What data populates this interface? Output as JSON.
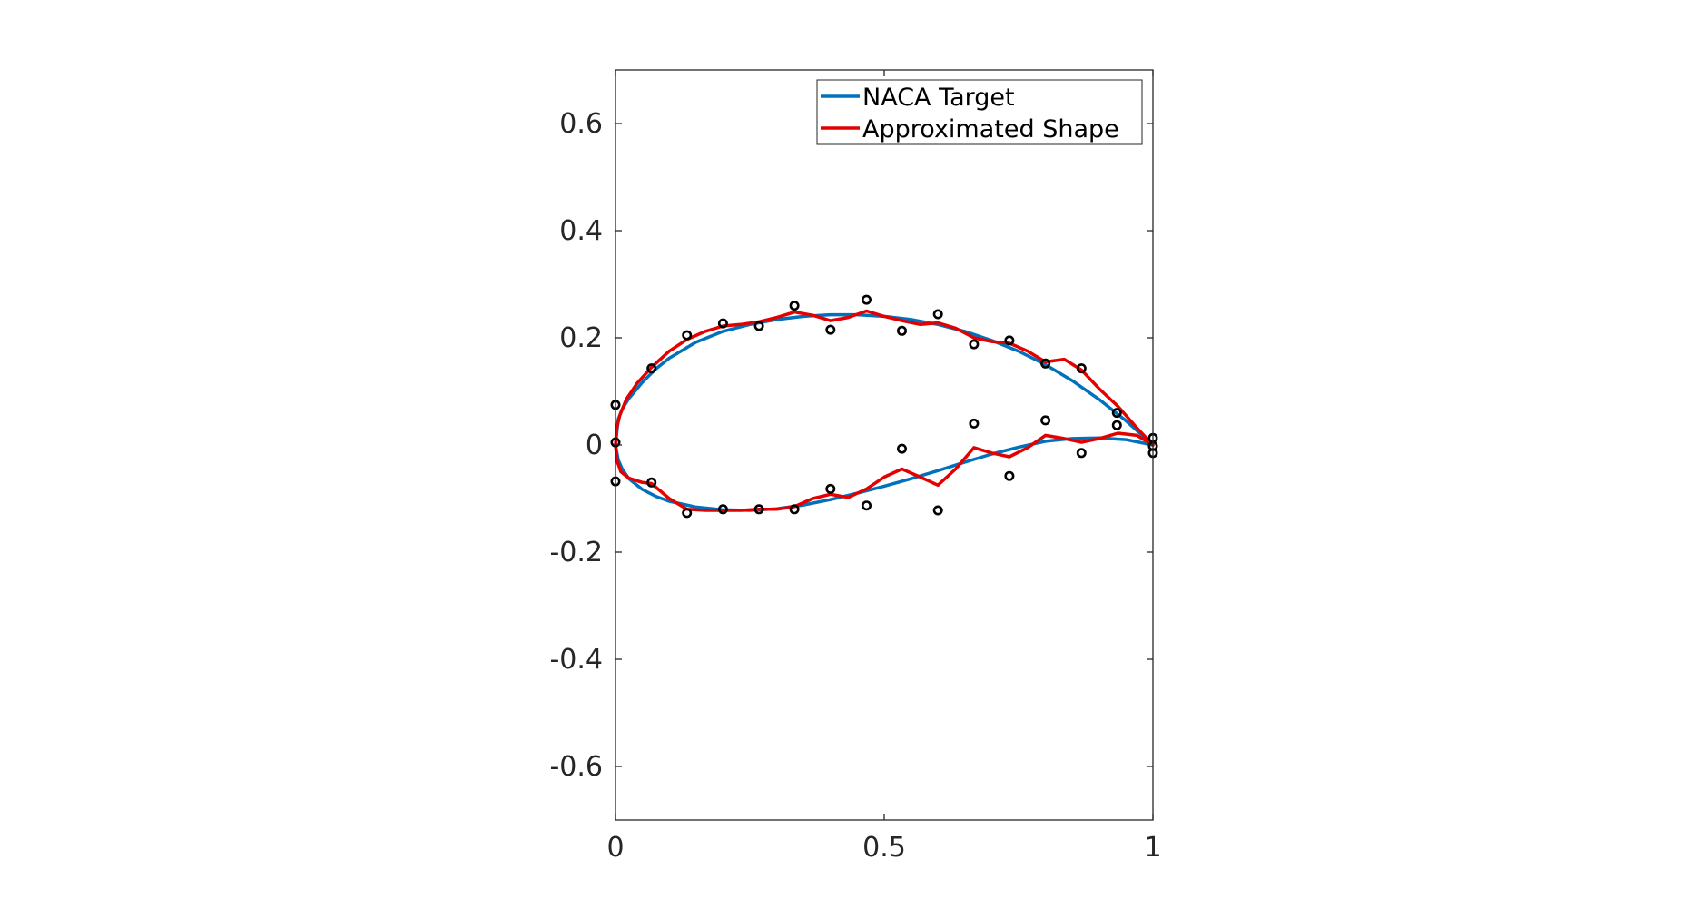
{
  "chart_data": {
    "type": "line",
    "title": "",
    "xlabel": "",
    "ylabel": "",
    "xlim": [
      0,
      1
    ],
    "ylim": [
      -0.7,
      0.7
    ],
    "grid": false,
    "legend_position": "top-right",
    "x_ticks": [
      "0",
      "0.5",
      "1"
    ],
    "y_ticks": [
      "0.6",
      "0.4",
      "0.2",
      "0",
      "-0.2",
      "-0.4",
      "-0.6"
    ],
    "series": [
      {
        "name": "NACA Target",
        "color": "#0072BD",
        "style": "line",
        "x": [
          1,
          0.95,
          0.9,
          0.85,
          0.8,
          0.75,
          0.7,
          0.65,
          0.6,
          0.55,
          0.5,
          0.45,
          0.4,
          0.35,
          0.3,
          0.25,
          0.2,
          0.15,
          0.1,
          0.075,
          0.05,
          0.025,
          0.0125,
          0.005,
          0,
          0.005,
          0.0125,
          0.025,
          0.05,
          0.075,
          0.1,
          0.15,
          0.2,
          0.25,
          0.3,
          0.35,
          0.4,
          0.45,
          0.5,
          0.55,
          0.6,
          0.65,
          0.7,
          0.75,
          0.8,
          0.85,
          0.9,
          0.95,
          1
        ],
        "y": [
          0,
          0.045,
          0.085,
          0.12,
          0.15,
          0.175,
          0.195,
          0.212,
          0.225,
          0.234,
          0.24,
          0.243,
          0.243,
          0.24,
          0.234,
          0.225,
          0.212,
          0.192,
          0.162,
          0.142,
          0.117,
          0.087,
          0.067,
          0.048,
          0,
          -0.028,
          -0.045,
          -0.063,
          -0.083,
          -0.096,
          -0.105,
          -0.116,
          -0.121,
          -0.122,
          -0.119,
          -0.112,
          -0.102,
          -0.09,
          -0.077,
          -0.063,
          -0.048,
          -0.032,
          -0.017,
          -0.004,
          0.007,
          0.012,
          0.013,
          0.01,
          0
        ]
      },
      {
        "name": "Approximated Shape",
        "color": "#E50000",
        "style": "line",
        "x": [
          1,
          0.97,
          0.935,
          0.9,
          0.867,
          0.835,
          0.8,
          0.767,
          0.733,
          0.7,
          0.667,
          0.633,
          0.6,
          0.567,
          0.533,
          0.5,
          0.467,
          0.433,
          0.4,
          0.367,
          0.333,
          0.3,
          0.267,
          0.233,
          0.2,
          0.167,
          0.133,
          0.1,
          0.067,
          0.04,
          0.02,
          0.008,
          0.002,
          0,
          0.003,
          0.01,
          0.025,
          0.05,
          0.067,
          0.1,
          0.133,
          0.167,
          0.2,
          0.233,
          0.267,
          0.3,
          0.333,
          0.367,
          0.4,
          0.433,
          0.467,
          0.5,
          0.533,
          0.567,
          0.6,
          0.633,
          0.667,
          0.7,
          0.733,
          0.767,
          0.8,
          0.835,
          0.867,
          0.9,
          0.935,
          0.97,
          1
        ],
        "y": [
          0,
          0.032,
          0.072,
          0.105,
          0.14,
          0.16,
          0.155,
          0.175,
          0.19,
          0.193,
          0.2,
          0.218,
          0.228,
          0.225,
          0.232,
          0.24,
          0.25,
          0.238,
          0.232,
          0.242,
          0.248,
          0.238,
          0.23,
          0.225,
          0.222,
          0.212,
          0.197,
          0.175,
          0.145,
          0.115,
          0.085,
          0.055,
          0.03,
          0,
          -0.03,
          -0.05,
          -0.062,
          -0.07,
          -0.072,
          -0.1,
          -0.12,
          -0.122,
          -0.122,
          -0.122,
          -0.12,
          -0.12,
          -0.115,
          -0.1,
          -0.092,
          -0.098,
          -0.082,
          -0.06,
          -0.045,
          -0.06,
          -0.075,
          -0.045,
          -0.005,
          -0.015,
          -0.022,
          -0.005,
          0.018,
          0.012,
          0.005,
          0.012,
          0.022,
          0.018,
          0
        ]
      },
      {
        "name": "",
        "color": "#000000",
        "style": "markers",
        "marker": "circle",
        "x": [
          0,
          0,
          0,
          0.067,
          0.133,
          0.2,
          0.267,
          0.333,
          0.4,
          0.467,
          0.533,
          0.6,
          0.667,
          0.733,
          0.8,
          0.867,
          0.933,
          0.933,
          1,
          1,
          1,
          0.067,
          0.133,
          0.2,
          0.267,
          0.333,
          0.4,
          0.467,
          0.533,
          0.6,
          0.667,
          0.733,
          0.8,
          0.867
        ],
        "y": [
          0.075,
          0.005,
          -0.068,
          0.143,
          0.205,
          0.227,
          0.222,
          0.26,
          0.215,
          0.271,
          0.213,
          0.244,
          0.188,
          0.195,
          0.152,
          0.143,
          0.06,
          0.037,
          0.013,
          -0.002,
          -0.015,
          -0.07,
          -0.127,
          -0.12,
          -0.12,
          -0.12,
          -0.082,
          -0.113,
          -0.007,
          -0.122,
          0.04,
          -0.058,
          0.046,
          -0.015
        ]
      }
    ]
  }
}
